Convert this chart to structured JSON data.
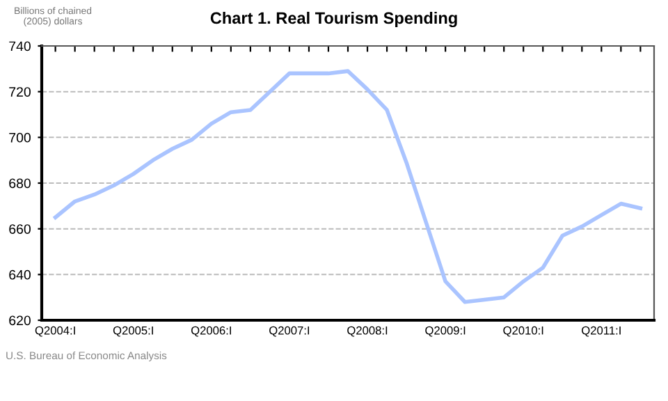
{
  "chart_data": {
    "type": "line",
    "title": "Chart 1. Real Tourism Spending",
    "ylabel": "Billions of chained\n(2005) dollars",
    "categories": [
      "Q2004:I",
      null,
      null,
      null,
      "Q2005:I",
      null,
      null,
      null,
      "Q2006:I",
      null,
      null,
      null,
      "Q2007:I",
      null,
      null,
      null,
      "Q2008:I",
      null,
      null,
      null,
      "Q2009:I",
      null,
      null,
      null,
      "Q2010:I",
      null,
      null,
      null,
      "Q2011:I",
      null,
      null
    ],
    "series": [
      {
        "color": "#aac4ff",
        "values": [
          665,
          672,
          675,
          679,
          684,
          690,
          695,
          699,
          706,
          711,
          712,
          720,
          728,
          728,
          728,
          729,
          721,
          712,
          689,
          663,
          637,
          628,
          629,
          630,
          637,
          643,
          657,
          661,
          666,
          671,
          669
        ]
      }
    ],
    "ylim": [
      620,
      740
    ],
    "yticks": [
      620,
      640,
      660,
      680,
      700,
      720,
      740
    ],
    "grid": "y",
    "legend": false,
    "annotations": [
      "U.S. Bureau of Economic Analysis"
    ]
  }
}
